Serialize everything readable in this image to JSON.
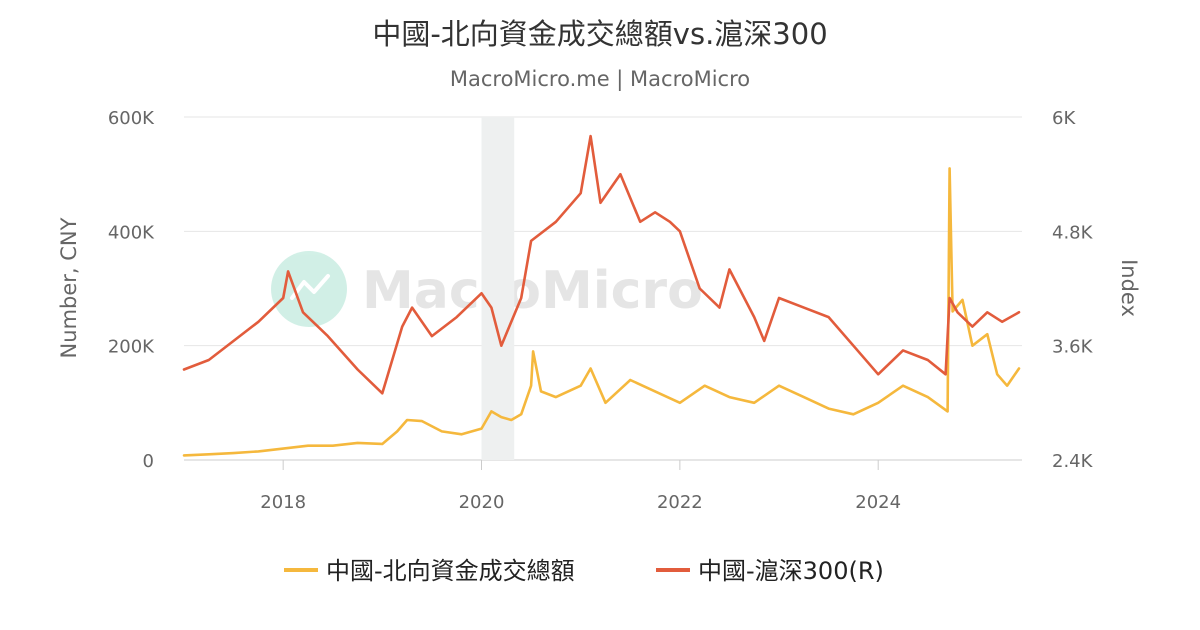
{
  "chart_data": {
    "type": "line",
    "title": "中國-北向資金成交總額vs.滬深300",
    "subtitle": "MacroMicro.me | MacroMicro",
    "watermark": "MacroMicro",
    "x_axis": {
      "type": "time",
      "range": [
        2017.0,
        2025.45
      ],
      "ticks": [
        "2018",
        "2020",
        "2022",
        "2024"
      ],
      "tick_values": [
        2018,
        2020,
        2022,
        2024
      ]
    },
    "y_left": {
      "label": "Number, CNY",
      "range": [
        0,
        600000
      ],
      "ticks": [
        "0",
        "200K",
        "400K",
        "600K"
      ],
      "tick_values": [
        0,
        200000,
        400000,
        600000
      ]
    },
    "y_right": {
      "label": "Index",
      "range": [
        2400,
        6000
      ],
      "ticks": [
        "2.4K",
        "3.6K",
        "4.8K",
        "6K"
      ],
      "tick_values": [
        2400,
        3600,
        4800,
        6000
      ]
    },
    "shaded_period": [
      2020.0,
      2020.33
    ],
    "grid": true,
    "legend_position": "bottom",
    "series": [
      {
        "name": "中國-北向資金成交總額",
        "axis": "left",
        "color": "#f5b83d",
        "points": [
          [
            2017.0,
            8000
          ],
          [
            2017.25,
            10000
          ],
          [
            2017.5,
            12000
          ],
          [
            2017.75,
            15000
          ],
          [
            2018.0,
            20000
          ],
          [
            2018.25,
            25000
          ],
          [
            2018.5,
            25000
          ],
          [
            2018.75,
            30000
          ],
          [
            2019.0,
            28000
          ],
          [
            2019.15,
            50000
          ],
          [
            2019.25,
            70000
          ],
          [
            2019.4,
            68000
          ],
          [
            2019.6,
            50000
          ],
          [
            2019.8,
            45000
          ],
          [
            2020.0,
            55000
          ],
          [
            2020.1,
            85000
          ],
          [
            2020.2,
            75000
          ],
          [
            2020.3,
            70000
          ],
          [
            2020.4,
            80000
          ],
          [
            2020.5,
            130000
          ],
          [
            2020.52,
            190000
          ],
          [
            2020.6,
            120000
          ],
          [
            2020.75,
            110000
          ],
          [
            2021.0,
            130000
          ],
          [
            2021.1,
            160000
          ],
          [
            2021.25,
            100000
          ],
          [
            2021.5,
            140000
          ],
          [
            2021.75,
            120000
          ],
          [
            2022.0,
            100000
          ],
          [
            2022.25,
            130000
          ],
          [
            2022.5,
            110000
          ],
          [
            2022.75,
            100000
          ],
          [
            2023.0,
            130000
          ],
          [
            2023.25,
            110000
          ],
          [
            2023.5,
            90000
          ],
          [
            2023.75,
            80000
          ],
          [
            2024.0,
            100000
          ],
          [
            2024.25,
            130000
          ],
          [
            2024.5,
            110000
          ],
          [
            2024.7,
            85000
          ],
          [
            2024.72,
            510000
          ],
          [
            2024.75,
            260000
          ],
          [
            2024.85,
            280000
          ],
          [
            2024.95,
            200000
          ],
          [
            2025.1,
            220000
          ],
          [
            2025.2,
            150000
          ],
          [
            2025.3,
            130000
          ],
          [
            2025.42,
            160000
          ]
        ]
      },
      {
        "name": "中國-滬深300(R)",
        "axis": "right",
        "color": "#e25c3c",
        "points": [
          [
            2017.0,
            3350
          ],
          [
            2017.25,
            3450
          ],
          [
            2017.5,
            3650
          ],
          [
            2017.75,
            3850
          ],
          [
            2018.0,
            4100
          ],
          [
            2018.05,
            4380
          ],
          [
            2018.2,
            3950
          ],
          [
            2018.45,
            3700
          ],
          [
            2018.75,
            3350
          ],
          [
            2019.0,
            3100
          ],
          [
            2019.2,
            3800
          ],
          [
            2019.3,
            4000
          ],
          [
            2019.5,
            3700
          ],
          [
            2019.75,
            3900
          ],
          [
            2020.0,
            4150
          ],
          [
            2020.1,
            4000
          ],
          [
            2020.2,
            3600
          ],
          [
            2020.4,
            4100
          ],
          [
            2020.5,
            4700
          ],
          [
            2020.75,
            4900
          ],
          [
            2021.0,
            5200
          ],
          [
            2021.1,
            5800
          ],
          [
            2021.2,
            5100
          ],
          [
            2021.4,
            5400
          ],
          [
            2021.6,
            4900
          ],
          [
            2021.75,
            5000
          ],
          [
            2021.9,
            4900
          ],
          [
            2022.0,
            4800
          ],
          [
            2022.2,
            4200
          ],
          [
            2022.4,
            4000
          ],
          [
            2022.5,
            4400
          ],
          [
            2022.75,
            3900
          ],
          [
            2022.85,
            3650
          ],
          [
            2023.0,
            4100
          ],
          [
            2023.25,
            4000
          ],
          [
            2023.5,
            3900
          ],
          [
            2023.75,
            3600
          ],
          [
            2024.0,
            3300
          ],
          [
            2024.25,
            3550
          ],
          [
            2024.5,
            3450
          ],
          [
            2024.68,
            3300
          ],
          [
            2024.72,
            4100
          ],
          [
            2024.8,
            3950
          ],
          [
            2024.95,
            3800
          ],
          [
            2025.1,
            3950
          ],
          [
            2025.25,
            3850
          ],
          [
            2025.42,
            3950
          ]
        ]
      }
    ]
  }
}
